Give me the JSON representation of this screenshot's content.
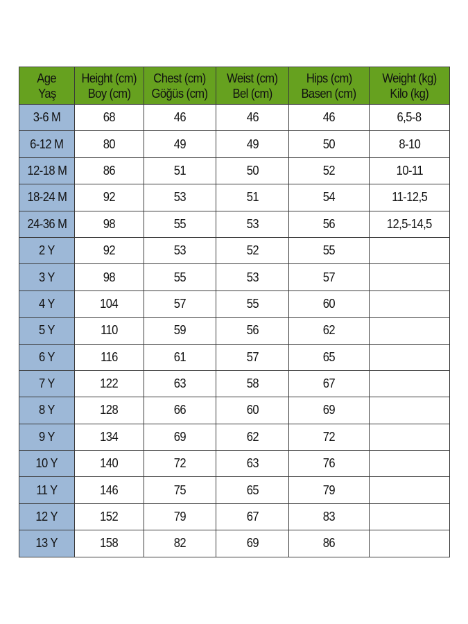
{
  "colors": {
    "header_bg": "#66a11f",
    "age_col_bg": "#9db8d7"
  },
  "headers": [
    {
      "en": "Age",
      "tr": "Yaş"
    },
    {
      "en": "Height (cm)",
      "tr": "Boy (cm)"
    },
    {
      "en": "Chest (cm)",
      "tr": "Göğüs (cm)"
    },
    {
      "en": "Weist (cm)",
      "tr": "Bel (cm)"
    },
    {
      "en": "Hips (cm)",
      "tr": "Basen (cm)"
    },
    {
      "en": "Weight (kg)",
      "tr": "Kilo (kg)"
    }
  ],
  "rows": [
    [
      "3-6 M",
      "68",
      "46",
      "46",
      "46",
      "6,5-8"
    ],
    [
      "6-12 M",
      "80",
      "49",
      "49",
      "50",
      "8-10"
    ],
    [
      "12-18 M",
      "86",
      "51",
      "50",
      "52",
      "10-11"
    ],
    [
      "18-24 M",
      "92",
      "53",
      "51",
      "54",
      "11-12,5"
    ],
    [
      "24-36 M",
      "98",
      "55",
      "53",
      "56",
      "12,5-14,5"
    ],
    [
      "2 Y",
      "92",
      "53",
      "52",
      "55",
      ""
    ],
    [
      "3 Y",
      "98",
      "55",
      "53",
      "57",
      ""
    ],
    [
      "4 Y",
      "104",
      "57",
      "55",
      "60",
      ""
    ],
    [
      "5 Y",
      "110",
      "59",
      "56",
      "62",
      ""
    ],
    [
      "6 Y",
      "116",
      "61",
      "57",
      "65",
      ""
    ],
    [
      "7 Y",
      "122",
      "63",
      "58",
      "67",
      ""
    ],
    [
      "8 Y",
      "128",
      "66",
      "60",
      "69",
      ""
    ],
    [
      "9 Y",
      "134",
      "69",
      "62",
      "72",
      ""
    ],
    [
      "10 Y",
      "140",
      "72",
      "63",
      "76",
      ""
    ],
    [
      "11 Y",
      "146",
      "75",
      "65",
      "79",
      ""
    ],
    [
      "12 Y",
      "152",
      "79",
      "67",
      "83",
      ""
    ],
    [
      "13 Y",
      "158",
      "82",
      "69",
      "86",
      ""
    ]
  ]
}
